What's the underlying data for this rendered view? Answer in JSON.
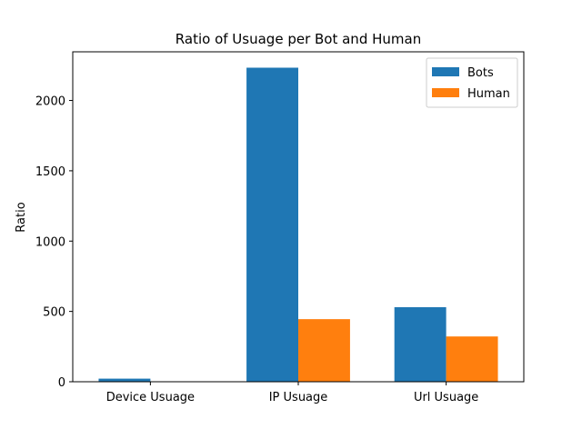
{
  "chart_data": {
    "type": "bar",
    "title": "Ratio of Usuage per Bot and Human",
    "xlabel": "",
    "ylabel": "Ratio",
    "categories": [
      "Device Usuage",
      "IP Usuage",
      "Url Usuage"
    ],
    "series": [
      {
        "name": "Bots",
        "values": [
          22,
          2233,
          530
        ],
        "color": "#1f77b4"
      },
      {
        "name": "Human",
        "values": [
          1,
          445,
          322
        ],
        "color": "#ff7f0e"
      }
    ],
    "ylim": [
      0,
      2346
    ],
    "yticks": [
      0,
      500,
      1000,
      1500,
      2000
    ],
    "grid": false,
    "legend_placement": "top-right"
  }
}
